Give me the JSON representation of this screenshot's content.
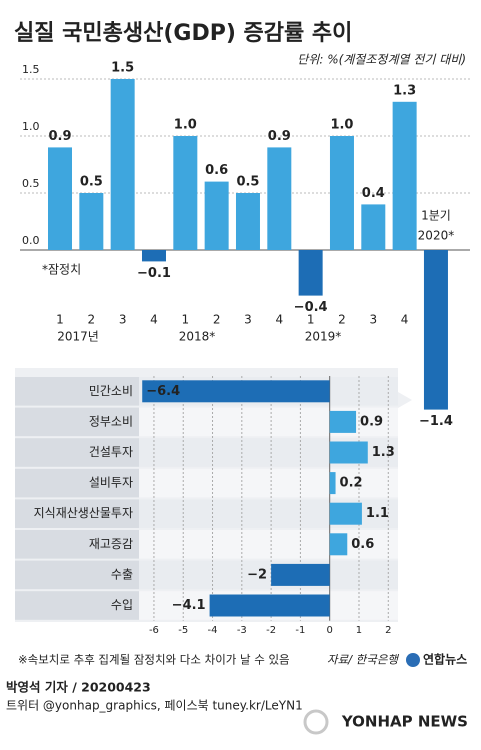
{
  "chart_data": [
    {
      "type": "bar",
      "title": "실질 국민총생산(GDP) 증감률 추이",
      "subtitle": "단위: %(계절조정계열 전기 대비)",
      "annotation": "*잠정치",
      "categories": [
        "1",
        "2",
        "3",
        "4",
        "1",
        "2",
        "3",
        "4",
        "1",
        "2",
        "3",
        "4",
        "1분기"
      ],
      "year_labels": [
        "2017년",
        "2018*",
        "2019*",
        "2020*"
      ],
      "values": [
        0.9,
        0.5,
        1.5,
        -0.1,
        1.0,
        0.6,
        0.5,
        0.9,
        -0.4,
        1.0,
        0.4,
        1.3,
        -1.4
      ],
      "value_labels": [
        "0.9",
        "0.5",
        "1.5",
        "−0.1",
        "1.0",
        "0.6",
        "0.5",
        "0.9",
        "−0.4",
        "1.0",
        "0.4",
        "1.3",
        "−1.4"
      ],
      "color": "#3ea6de",
      "negative_color": "#1d6db5",
      "ylim": [
        -1.5,
        1.6
      ],
      "yticks": [
        {
          "value": 0,
          "label": "0.0"
        },
        0.5,
        {
          "value": 1,
          "label": "1.0"
        },
        1.5
      ],
      "grid": true
    },
    {
      "type": "barh",
      "categories": [
        "민간소비",
        "정부소비",
        "건설투자",
        "설비투자",
        "지식재산생산물투자",
        "재고증감",
        "수출",
        "수입"
      ],
      "values": [
        -6.4,
        0.9,
        1.3,
        0.2,
        1.1,
        0.6,
        -2,
        -4.1
      ],
      "value_labels": [
        "−6.4",
        "0.9",
        "1.3",
        "0.2",
        "1.1",
        "0.6",
        "−2",
        "−4.1"
      ],
      "color": "#3ea6de",
      "negative_color": "#1d6db5",
      "xlim": [
        -6.5,
        2.4
      ],
      "xticks": [
        -6,
        -5,
        -4,
        -3,
        -2,
        -1,
        0,
        1,
        2
      ],
      "grid": true
    }
  ],
  "footer": {
    "note": "※속보치로 추후 집계될 잠정치와 다소 차이가 날 수 있음",
    "source": "자료/ 한국은행",
    "logo": "연합뉴스",
    "byline": "박영석 기자 / 20200423",
    "social": "트위터 @yonhap_graphics, 페이스북 tuney.kr/LeYN1",
    "watermark": "YONHAP NEWS"
  }
}
